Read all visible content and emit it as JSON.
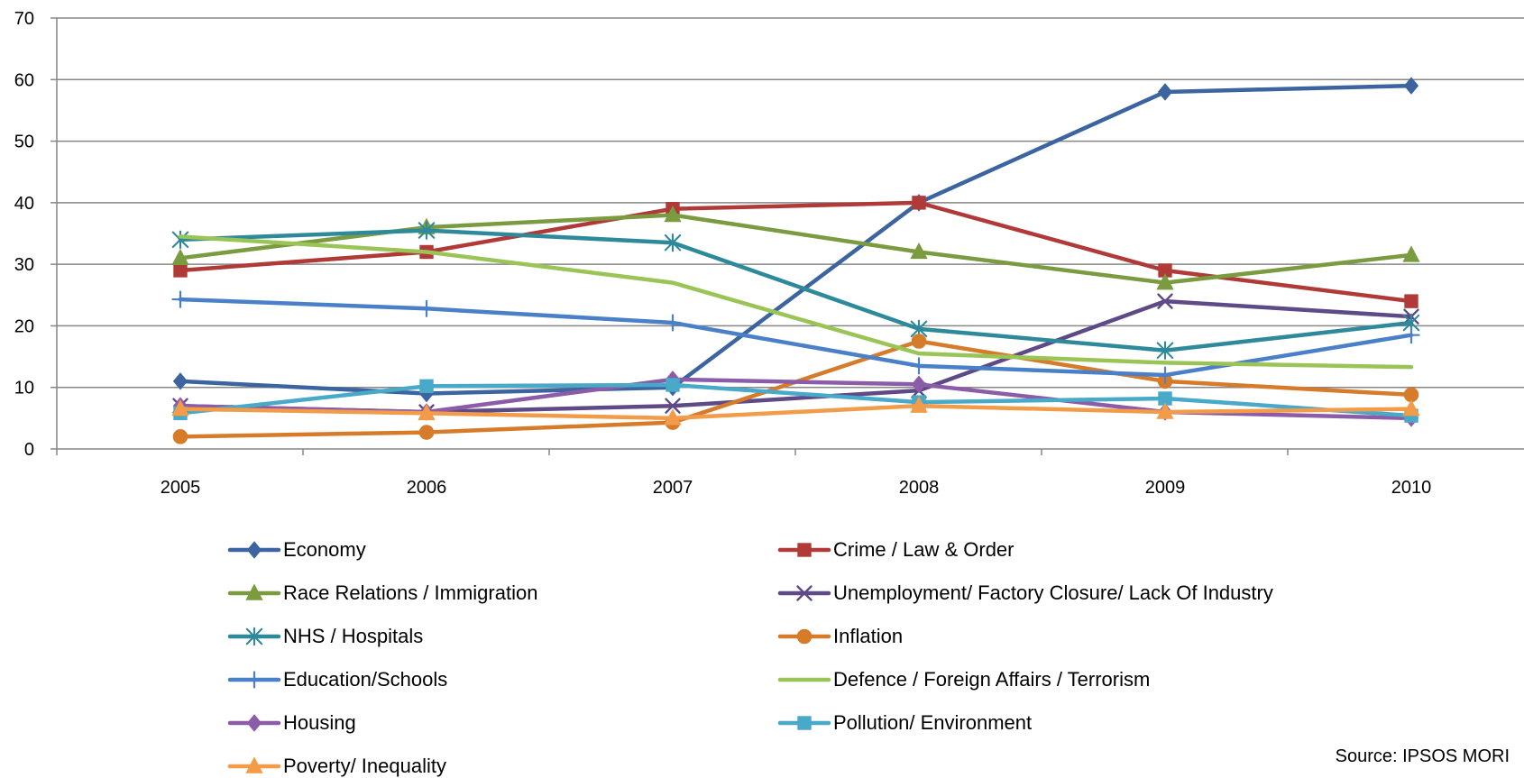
{
  "chart_data": {
    "type": "line",
    "title": "",
    "xlabel": "",
    "ylabel": "",
    "x": [
      "2005",
      "2006",
      "2007",
      "2008",
      "2009",
      "2010"
    ],
    "ylim": [
      0,
      70
    ],
    "y_ticks": [
      "0",
      "10",
      "20",
      "30",
      "40",
      "50",
      "60",
      "70"
    ],
    "grid": true,
    "legend_position": "bottom",
    "series": [
      {
        "name": "Economy",
        "color": "#3b64a0",
        "marker": "diamond",
        "values": [
          11,
          9,
          10,
          40,
          58,
          59
        ]
      },
      {
        "name": "Crime / Law & Order",
        "color": "#b03a37",
        "marker": "square",
        "values": [
          29,
          32,
          39,
          40,
          29,
          24
        ]
      },
      {
        "name": "Race Relations / Immigration",
        "color": "#7a9b3f",
        "marker": "triangle",
        "values": [
          31,
          36,
          38,
          32,
          27,
          31.5
        ]
      },
      {
        "name": "Unemployment/ Factory Closure/ Lack Of Industry",
        "color": "#5e4a86",
        "marker": "x",
        "values": [
          7,
          6,
          7,
          9.5,
          24,
          21.5
        ]
      },
      {
        "name": "NHS / Hospitals",
        "color": "#2e8a9b",
        "marker": "star",
        "values": [
          34,
          35.5,
          33.5,
          19.5,
          16,
          20.5
        ]
      },
      {
        "name": "Inflation",
        "color": "#d67b2a",
        "marker": "circle",
        "values": [
          2,
          2.7,
          4.3,
          17.5,
          11,
          8.8
        ]
      },
      {
        "name": "Education/Schools",
        "color": "#4a80c7",
        "marker": "plus",
        "values": [
          24.3,
          22.8,
          20.5,
          13.5,
          12,
          18.5
        ]
      },
      {
        "name": "Defence / Foreign Affairs / Terrorism",
        "color": "#9bc456",
        "marker": "none",
        "values": [
          34.5,
          32,
          27,
          15.5,
          14,
          13.3
        ]
      },
      {
        "name": "Housing",
        "color": "#8c5ca8",
        "marker": "diamond",
        "values": [
          7,
          6,
          11.3,
          10.5,
          6,
          5
        ]
      },
      {
        "name": "Pollution/ Environment",
        "color": "#48a9c9",
        "marker": "square",
        "values": [
          5.8,
          10.2,
          10.4,
          7.6,
          8.2,
          5.4
        ]
      },
      {
        "name": "Poverty/ Inequality",
        "color": "#f29b49",
        "marker": "triangle",
        "values": [
          6.5,
          5.8,
          5,
          7,
          6,
          6.5
        ]
      }
    ],
    "annotations": [
      {
        "text": "Source: IPSOS MORI"
      }
    ]
  }
}
